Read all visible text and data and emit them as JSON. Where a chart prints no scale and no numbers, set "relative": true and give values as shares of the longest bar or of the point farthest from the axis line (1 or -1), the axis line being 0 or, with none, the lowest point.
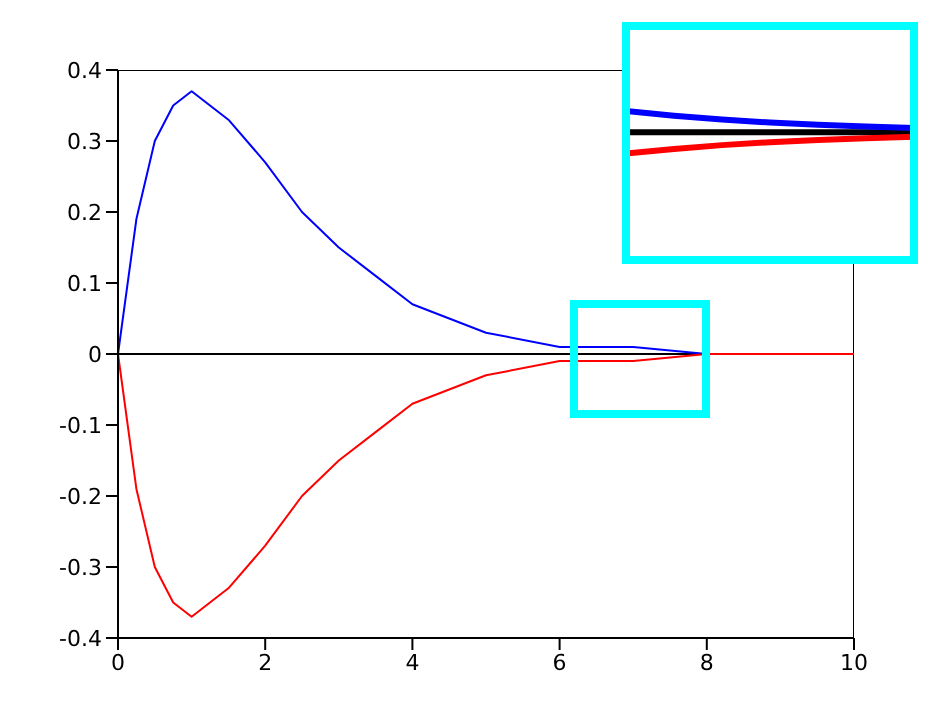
{
  "chart_data": [
    {
      "type": "line",
      "x": [
        0,
        0.25,
        0.5,
        0.75,
        1,
        1.5,
        2,
        2.5,
        3,
        3.5,
        4,
        5,
        6,
        7,
        8,
        9,
        10
      ],
      "series": [
        {
          "color": "#0000ff",
          "values": [
            0,
            0.19,
            0.3,
            0.35,
            0.37,
            0.33,
            0.27,
            0.2,
            0.15,
            0.11,
            0.07,
            0.03,
            0.01,
            0.01,
            0,
            0,
            0
          ]
        },
        {
          "color": "#ff0000",
          "values": [
            0,
            -0.19,
            -0.3,
            -0.35,
            -0.37,
            -0.33,
            -0.27,
            -0.2,
            -0.15,
            -0.11,
            -0.07,
            -0.03,
            -0.01,
            -0.01,
            0,
            0,
            0
          ]
        }
      ],
      "ref_lines": [
        {
          "axis": "y",
          "value": 0,
          "color": "#000000"
        }
      ],
      "xlim": [
        0,
        10
      ],
      "xticks": [
        0,
        2,
        4,
        6,
        8,
        10
      ],
      "ylim": [
        -0.4,
        0.4
      ],
      "yticks": [
        -0.4,
        -0.3,
        -0.2,
        -0.1,
        0.0,
        0.1,
        0.2,
        0.3,
        0.4
      ],
      "grid": false,
      "legend": false,
      "marker": "none",
      "line_style": "solid"
    },
    {
      "type": "line",
      "relative": true,
      "categories": [
        null,
        null,
        null,
        null,
        null,
        null,
        null
      ],
      "series": [
        {
          "color": "#0000ff",
          "values": [
            1,
            0.78,
            0.6,
            0.46,
            0.36,
            0.28,
            0.21
          ]
        },
        {
          "color": "#ff0000",
          "values": [
            -1,
            -0.78,
            -0.6,
            -0.46,
            -0.36,
            -0.28,
            -0.21
          ]
        }
      ],
      "grid": false,
      "legend": false,
      "marker": "none",
      "line_style": "solid"
    }
  ]
}
